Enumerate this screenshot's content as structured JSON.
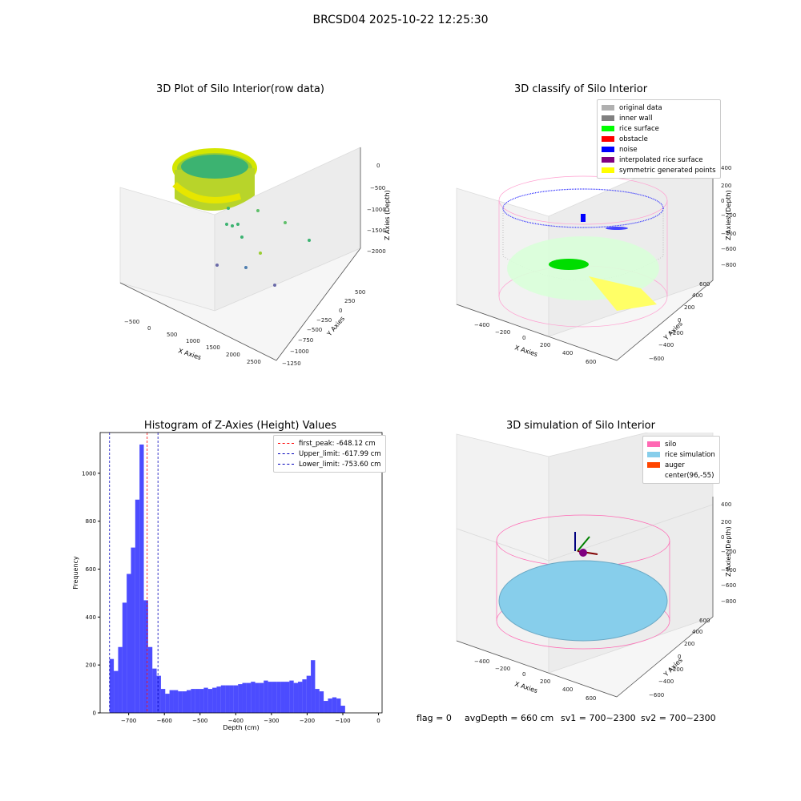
{
  "suptitle": "BRCSD04 2025-10-22 12:25:30",
  "panels": {
    "raw": {
      "title": "3D Plot of Silo Interior(row data)",
      "xlabel": "X Axies",
      "ylabel": "Y Axies",
      "zlabel": "Z Axies (Depth)",
      "xticks": [
        "−500",
        "0",
        "500",
        "1000",
        "1500",
        "2000",
        "2500"
      ],
      "yticks": [
        "500",
        "250",
        "0",
        "−250",
        "−500",
        "−750",
        "−1000",
        "−1250"
      ],
      "zticks": [
        "0",
        "−500",
        "−1000",
        "−1500",
        "−2000"
      ]
    },
    "classify": {
      "title": "3D classify of Silo Interior",
      "xlabel": "X Axies",
      "ylabel": "Y Axies",
      "zlabel": "Z Axies (Depth)",
      "xticks": [
        "−400",
        "−200",
        "0",
        "200",
        "400",
        "600"
      ],
      "yticks": [
        "600",
        "400",
        "200",
        "0",
        "−200",
        "−400",
        "−600"
      ],
      "zticks": [
        "400",
        "200",
        "0",
        "−200",
        "−400",
        "−600",
        "−800"
      ],
      "legend": [
        {
          "label": "original data",
          "color": "#b0b0b0"
        },
        {
          "label": "inner wall",
          "color": "#808080"
        },
        {
          "label": "rice surface",
          "color": "#00ff00"
        },
        {
          "label": "obstacle",
          "color": "#ff0000"
        },
        {
          "label": "noise",
          "color": "#0000ff"
        },
        {
          "label": "interpolated rice surface",
          "color": "#800080"
        },
        {
          "label": "symmetric generated points",
          "color": "#ffff00"
        }
      ]
    },
    "simulation": {
      "title": "3D simulation of Silo Interior",
      "xlabel": "X Axies",
      "ylabel": "Y Axies",
      "zlabel": "Z Axies (Depth)",
      "xticks": [
        "−400",
        "−200",
        "0",
        "200",
        "400",
        "600"
      ],
      "yticks": [
        "600",
        "400",
        "200",
        "0",
        "−200",
        "−400",
        "−600"
      ],
      "zticks": [
        "400",
        "200",
        "0",
        "−200",
        "−400",
        "−600",
        "−800"
      ],
      "legend": [
        {
          "label": "silo",
          "color": "#ff69b4"
        },
        {
          "label": "rice simulation",
          "color": "#87ceeb"
        },
        {
          "label": "auger",
          "color": "#ff4500"
        },
        {
          "label": "center(96,-55)",
          "color": "#ffffff"
        }
      ]
    }
  },
  "footer": {
    "flag": "flag = 0",
    "avg": "avgDepth = 660 cm",
    "sv1": "sv1 = 700~2300",
    "sv2": "sv2 = 700~2300"
  },
  "chart_data": {
    "type": "bar",
    "title": "Histogram of Z-Axies (Height) Values",
    "xlabel": "Depth (cm)",
    "ylabel": "Frequency",
    "xlim": [
      -780,
      10
    ],
    "ylim": [
      0,
      1170
    ],
    "xticks": [
      -700,
      -600,
      -500,
      -400,
      -300,
      -200,
      -100,
      0
    ],
    "yticks": [
      0,
      200,
      400,
      600,
      800,
      1000
    ],
    "bin_start": -753.6,
    "bin_width": 12.0,
    "values": [
      225,
      175,
      275,
      460,
      580,
      690,
      890,
      1120,
      470,
      275,
      185,
      155,
      100,
      80,
      95,
      95,
      90,
      90,
      95,
      100,
      100,
      100,
      105,
      100,
      105,
      110,
      115,
      115,
      115,
      115,
      120,
      125,
      125,
      130,
      125,
      125,
      135,
      130,
      130,
      130,
      130,
      130,
      135,
      125,
      130,
      140,
      155,
      220,
      100,
      90,
      50,
      60,
      65,
      60,
      30
    ],
    "bar_color": "#0000ff",
    "vlines": [
      {
        "label": "first_peak: -648.12 cm",
        "x": -648.12,
        "color": "#ff0000"
      },
      {
        "label": "Upper_limit: -617.99 cm",
        "x": -617.99,
        "color": "#0000bb"
      },
      {
        "label": "Lower_limit: -753.60 cm",
        "x": -753.6,
        "color": "#0000bb"
      }
    ],
    "legend_position": "upper-right"
  }
}
